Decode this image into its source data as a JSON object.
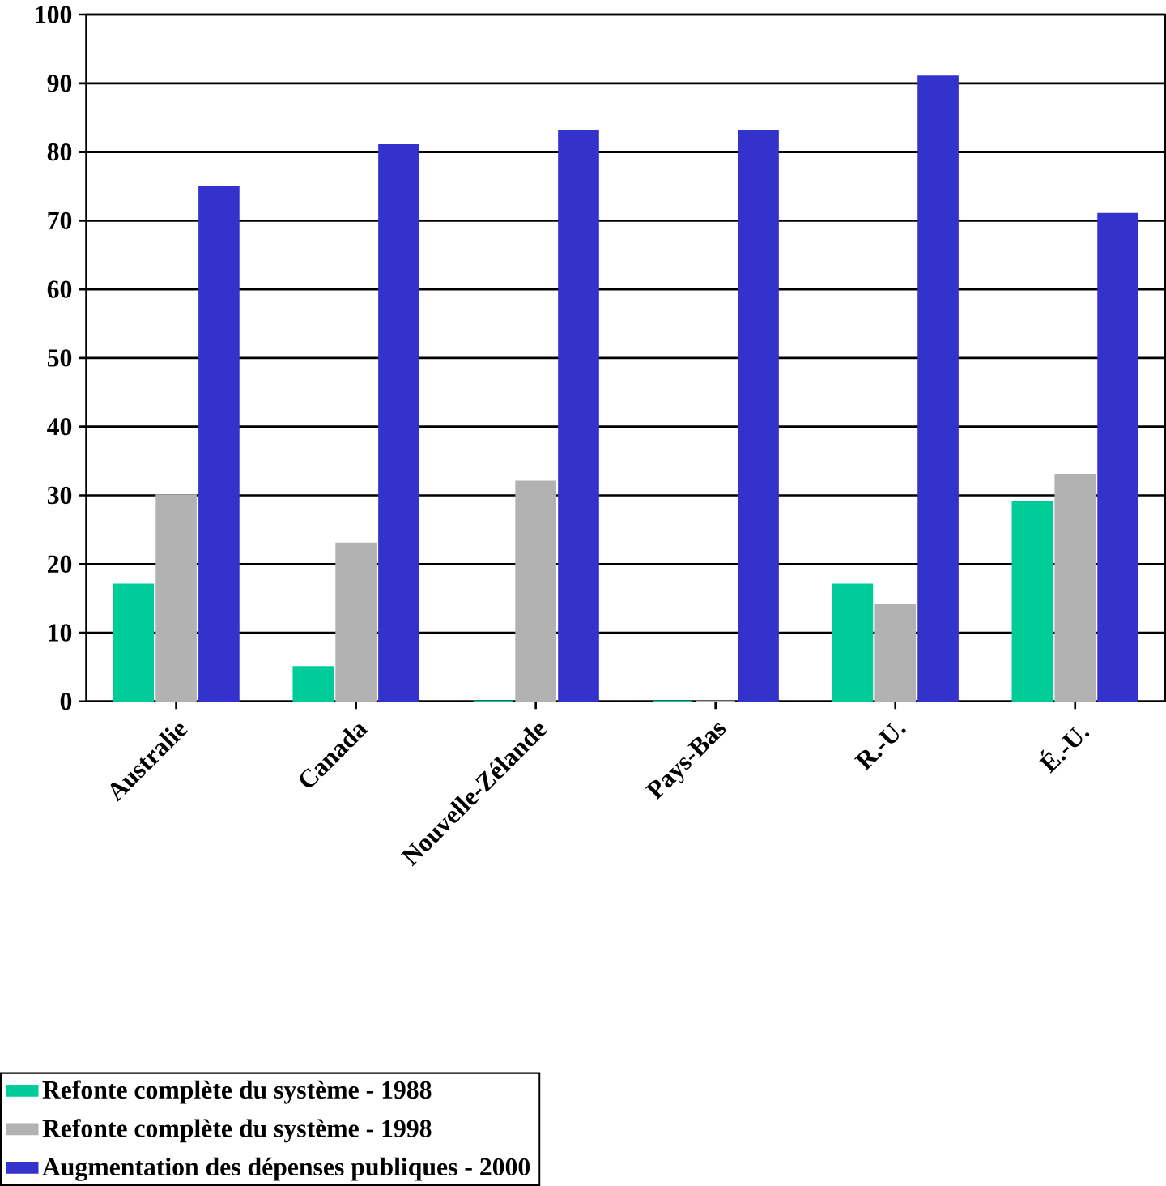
{
  "chart_data": {
    "type": "bar",
    "categories": [
      "Australie",
      "Canada",
      "Nouvelle-Zélande",
      "Pays-Bas",
      "R.-U.",
      "É.-U."
    ],
    "series": [
      {
        "name": "Refonte complète du système - 1988",
        "color": "#00cc99",
        "values": [
          17,
          5,
          0,
          0,
          17,
          29
        ]
      },
      {
        "name": "Refonte complète du système - 1998",
        "color": "#b2b2b2",
        "values": [
          30,
          23,
          32,
          0,
          14,
          33
        ]
      },
      {
        "name": "Augmentation des dépenses publiques - 2000",
        "color": "#3333cc",
        "values": [
          75,
          81,
          83,
          83,
          91,
          71
        ]
      }
    ],
    "ylim": [
      0,
      100
    ],
    "yticks": [
      0,
      10,
      20,
      30,
      40,
      50,
      60,
      70,
      80,
      90,
      100
    ],
    "grid": "y",
    "legend": "bottom"
  }
}
